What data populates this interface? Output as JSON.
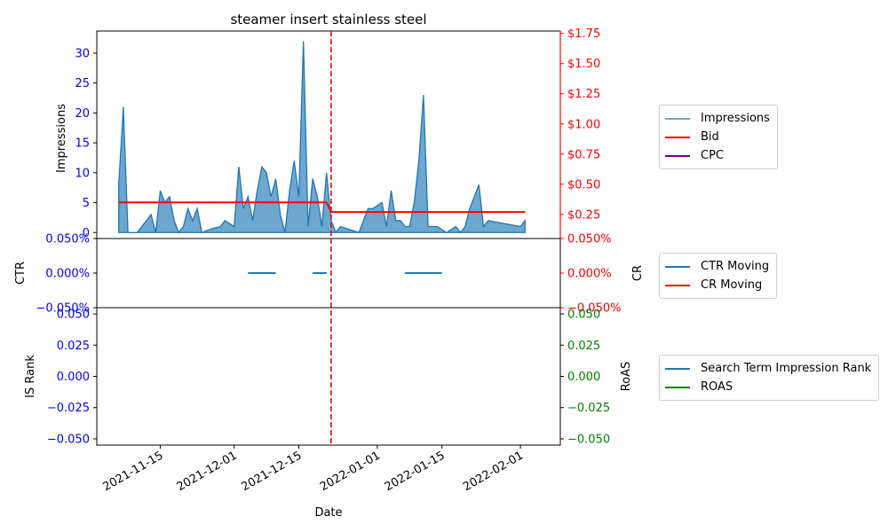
{
  "chart_data": {
    "title": "steamer insert stainless steel",
    "xlabel": "Date",
    "x_ticks": [
      "2021-11-15",
      "2021-12-01",
      "2021-12-15",
      "2022-01-01",
      "2022-01-15",
      "2022-02-01"
    ],
    "event_line_date": "2021-12-22",
    "colors": {
      "impressions": "#1f77b4",
      "bid": "#ff0000",
      "cpc": "#800080",
      "ctr": "#1f77b4",
      "cr": "#ff0000",
      "is_rank": "#1f77b4",
      "roas": "#008000",
      "event_line": "#ff0000",
      "left_ticks": "#0000ff",
      "right_ticks_top": "#ff0000",
      "right_ticks_bottom": "#008000"
    },
    "panels": [
      {
        "id": "top",
        "type": "area",
        "ylabel_left": "Impressions",
        "ylim_left": [
          -1,
          33.7
        ],
        "yticks_left": [
          "0",
          "5",
          "10",
          "15",
          "20",
          "25",
          "30"
        ],
        "ylim_right": [
          0.05,
          1.77
        ],
        "yticks_right": [
          "$0.25",
          "$0.50",
          "$0.75",
          "$1.00",
          "$1.25",
          "$1.50",
          "$1.75"
        ],
        "legend": [
          {
            "label": "Impressions",
            "color": "#6fa5d2"
          },
          {
            "label": "Bid",
            "color": "#ff0000"
          },
          {
            "label": "CPC",
            "color": "#800080"
          }
        ],
        "impressions": {
          "name": "Impressions",
          "points": [
            [
              "2021-11-06",
              8
            ],
            [
              "2021-11-07",
              21
            ],
            [
              "2021-11-08",
              0
            ],
            [
              "2021-11-09",
              0
            ],
            [
              "2021-11-10",
              0
            ],
            [
              "2021-11-11",
              1
            ],
            [
              "2021-11-12",
              2
            ],
            [
              "2021-11-13",
              3
            ],
            [
              "2021-11-14",
              0
            ],
            [
              "2021-11-15",
              7
            ],
            [
              "2021-11-16",
              5
            ],
            [
              "2021-11-17",
              6
            ],
            [
              "2021-11-18",
              2
            ],
            [
              "2021-11-19",
              0
            ],
            [
              "2021-11-20",
              1
            ],
            [
              "2021-11-21",
              4
            ],
            [
              "2021-11-22",
              2
            ],
            [
              "2021-11-23",
              4
            ],
            [
              "2021-11-24",
              0
            ],
            [
              "2021-11-25",
              0.3
            ],
            [
              "2021-11-26",
              0.6
            ],
            [
              "2021-11-27",
              0.8
            ],
            [
              "2021-11-28",
              1
            ],
            [
              "2021-11-29",
              2
            ],
            [
              "2021-11-30",
              1.5
            ],
            [
              "2021-12-01",
              1
            ],
            [
              "2021-12-02",
              11
            ],
            [
              "2021-12-03",
              4
            ],
            [
              "2021-12-04",
              6
            ],
            [
              "2021-12-05",
              2
            ],
            [
              "2021-12-06",
              7
            ],
            [
              "2021-12-07",
              11
            ],
            [
              "2021-12-08",
              10
            ],
            [
              "2021-12-09",
              6
            ],
            [
              "2021-12-10",
              9
            ],
            [
              "2021-12-11",
              3
            ],
            [
              "2021-12-12",
              0
            ],
            [
              "2021-12-13",
              7
            ],
            [
              "2021-12-14",
              12
            ],
            [
              "2021-12-15",
              6
            ],
            [
              "2021-12-16",
              32
            ],
            [
              "2021-12-17",
              1
            ],
            [
              "2021-12-18",
              9
            ],
            [
              "2021-12-19",
              6
            ],
            [
              "2021-12-20",
              1
            ],
            [
              "2021-12-21",
              10
            ],
            [
              "2021-12-22",
              2
            ],
            [
              "2021-12-23",
              0
            ],
            [
              "2021-12-24",
              1
            ],
            [
              "2021-12-28",
              0
            ],
            [
              "2021-12-30",
              4
            ],
            [
              "2021-12-31",
              4
            ],
            [
              "2022-01-02",
              5
            ],
            [
              "2022-01-03",
              1
            ],
            [
              "2022-01-04",
              7
            ],
            [
              "2022-01-05",
              2
            ],
            [
              "2022-01-06",
              2
            ],
            [
              "2022-01-07",
              1
            ],
            [
              "2022-01-08",
              1
            ],
            [
              "2022-01-09",
              5
            ],
            [
              "2022-01-10",
              12
            ],
            [
              "2022-01-11",
              23
            ],
            [
              "2022-01-12",
              1
            ],
            [
              "2022-01-14",
              1
            ],
            [
              "2022-01-16",
              0
            ],
            [
              "2022-01-18",
              1
            ],
            [
              "2022-01-19",
              0
            ],
            [
              "2022-01-20",
              1
            ],
            [
              "2022-01-21",
              4
            ],
            [
              "2022-01-22",
              6
            ],
            [
              "2022-01-23",
              8
            ],
            [
              "2022-01-24",
              1
            ],
            [
              "2022-01-25",
              2
            ],
            [
              "2022-02-01",
              1
            ],
            [
              "2022-02-02",
              2
            ]
          ]
        },
        "bid": {
          "name": "Bid",
          "points": [
            [
              "2021-11-06",
              0.35
            ],
            [
              "2021-12-21",
              0.35
            ],
            [
              "2021-12-22",
              0.27
            ],
            [
              "2022-02-02",
              0.27
            ]
          ]
        },
        "cpc": {
          "name": "CPC",
          "points": []
        }
      },
      {
        "id": "middle",
        "type": "line",
        "ylabel_left": "CTR",
        "ylabel_right": "CR",
        "ylim": [
          -0.05,
          0.05
        ],
        "yticks": [
          "−0.050%",
          "0.000%",
          "0.050%"
        ],
        "legend": [
          {
            "label": "CTR Moving",
            "color": "#1f77b4"
          },
          {
            "label": "CR Moving",
            "color": "#ff0000"
          }
        ],
        "ctr_segments": [
          [
            [
              "2021-12-04",
              0
            ],
            [
              "2021-12-10",
              0
            ]
          ],
          [
            [
              "2021-12-18",
              0
            ],
            [
              "2021-12-21",
              0
            ]
          ],
          [
            [
              "2022-01-07",
              0
            ],
            [
              "2022-01-15",
              0
            ]
          ]
        ]
      },
      {
        "id": "bottom",
        "type": "line",
        "ylabel_left": "IS Rank",
        "ylabel_right": "RoAS",
        "ylim": [
          -0.055,
          0.055
        ],
        "yticks": [
          "−0.050",
          "−0.025",
          "0.000",
          "0.025",
          "0.050"
        ],
        "legend": [
          {
            "label": "Search Term Impression Rank",
            "color": "#1f77b4"
          },
          {
            "label": "ROAS",
            "color": "#008000"
          }
        ]
      }
    ]
  }
}
